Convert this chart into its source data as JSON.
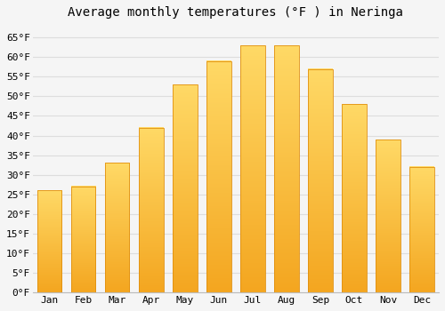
{
  "title": "Average monthly temperatures (°F ) in Neringa",
  "months": [
    "Jan",
    "Feb",
    "Mar",
    "Apr",
    "May",
    "Jun",
    "Jul",
    "Aug",
    "Sep",
    "Oct",
    "Nov",
    "Dec"
  ],
  "values": [
    26,
    27,
    33,
    42,
    53,
    59,
    63,
    63,
    57,
    48,
    39,
    32
  ],
  "bar_color_top": "#FFD966",
  "bar_color_bottom": "#F4A620",
  "bar_edge_color": "#E09010",
  "background_color": "#f5f5f5",
  "plot_bg_color": "#f5f5f5",
  "grid_color": "#dddddd",
  "ylim": [
    0,
    68
  ],
  "yticks": [
    0,
    5,
    10,
    15,
    20,
    25,
    30,
    35,
    40,
    45,
    50,
    55,
    60,
    65
  ],
  "ylabel_suffix": "°F",
  "title_fontsize": 10,
  "tick_fontsize": 8,
  "figsize": [
    5.0,
    3.5
  ],
  "dpi": 100
}
